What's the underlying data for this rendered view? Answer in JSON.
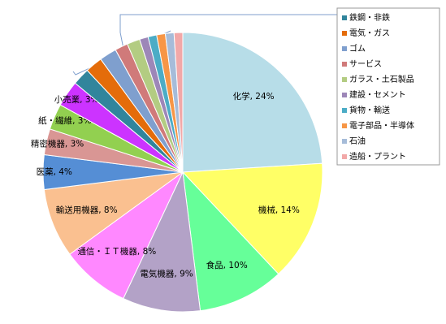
{
  "chart_data": {
    "type": "pie",
    "categories": [
      "化学",
      "機械",
      "食品",
      "電気機器",
      "通信・ＩＴ機器",
      "輸送用機器",
      "医薬",
      "精密機器",
      "紙・繊維",
      "小売業",
      "鉄鋼・非鉄",
      "電気・ガス",
      "ゴム",
      "サービス",
      "ガラス・土石製品",
      "建設・セメント",
      "貨物・輸送",
      "電子部品・半導体",
      "石油",
      "造船・プラント"
    ],
    "values": [
      24,
      14,
      10,
      9,
      8,
      8,
      4,
      3,
      3,
      3,
      2,
      2,
      2,
      1.5,
      1.5,
      1,
      1,
      1,
      1,
      1
    ],
    "value_labels": [
      "化学, 24%",
      "機械, 14%",
      "食品, 10%",
      "電気機器, 9%",
      "通信・ＩＴ機器, 8%",
      "輸送用機器, 8%",
      "医薬, 4%",
      "精密機器, 3%",
      "紙・繊維, 3%",
      "小売業, 3%",
      null,
      null,
      null,
      null,
      null,
      null,
      null,
      null,
      null,
      null
    ],
    "colors": [
      "#b7dde8",
      "#ffff66",
      "#66ff99",
      "#b3a2c7",
      "#ff88ff",
      "#fac090",
      "#558ed5",
      "#d99694",
      "#92d050",
      "#cc33ff",
      "#31859c",
      "#e46c0a",
      "#7f9fce",
      "#d07a7a",
      "#b3cc82",
      "#9d87b8",
      "#4bacc6",
      "#f79646",
      "#a6bcd9",
      "#f2a8a8"
    ]
  }
}
